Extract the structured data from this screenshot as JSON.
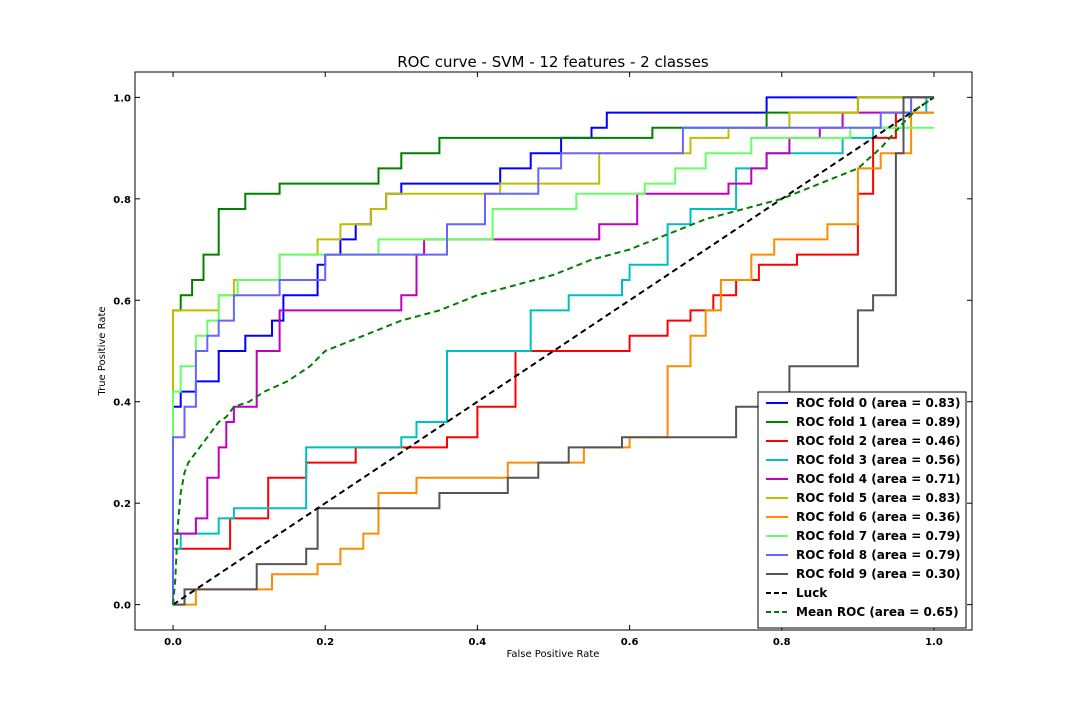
{
  "chart_data": {
    "type": "line",
    "title": "ROC curve - SVM - 12 features - 2 classes",
    "xlabel": "False Positive Rate",
    "ylabel": "True Positive Rate",
    "xlim": [
      -0.05,
      1.05
    ],
    "ylim": [
      -0.05,
      1.05
    ],
    "xticks": [
      "0.0",
      "0.2",
      "0.4",
      "0.6",
      "0.8",
      "1.0"
    ],
    "yticks": [
      "0.0",
      "0.2",
      "0.4",
      "0.6",
      "0.8",
      "1.0"
    ],
    "grid": false,
    "legend_position": "lower right",
    "series": [
      {
        "name": "ROC fold 0 (area = 0.83)",
        "color": "#0000ff",
        "dash": "solid",
        "x": [
          0,
          0,
          0.01,
          0.01,
          0.03,
          0.03,
          0.06,
          0.06,
          0.095,
          0.095,
          0.13,
          0.13,
          0.145,
          0.145,
          0.19,
          0.19,
          0.2,
          0.2,
          0.22,
          0.22,
          0.24,
          0.24,
          0.26,
          0.26,
          0.28,
          0.28,
          0.3,
          0.3,
          0.43,
          0.43,
          0.47,
          0.47,
          0.51,
          0.51,
          0.55,
          0.55,
          0.57,
          0.57,
          0.78,
          0.78,
          1.0
        ],
        "y": [
          0,
          0.39,
          0.39,
          0.42,
          0.42,
          0.44,
          0.44,
          0.5,
          0.5,
          0.53,
          0.53,
          0.56,
          0.56,
          0.61,
          0.61,
          0.67,
          0.67,
          0.69,
          0.69,
          0.72,
          0.72,
          0.75,
          0.75,
          0.78,
          0.78,
          0.81,
          0.81,
          0.83,
          0.83,
          0.86,
          0.86,
          0.89,
          0.89,
          0.92,
          0.92,
          0.94,
          0.94,
          0.97,
          0.97,
          1.0,
          1.0
        ]
      },
      {
        "name": "ROC fold 1 (area = 0.89)",
        "color": "#008000",
        "dash": "solid",
        "x": [
          0,
          0,
          0.01,
          0.01,
          0.025,
          0.025,
          0.04,
          0.04,
          0.06,
          0.06,
          0.095,
          0.095,
          0.14,
          0.14,
          0.27,
          0.27,
          0.3,
          0.3,
          0.35,
          0.35,
          0.63,
          0.63,
          0.78,
          0.78,
          0.9,
          0.9,
          1.0
        ],
        "y": [
          0,
          0.58,
          0.58,
          0.61,
          0.61,
          0.64,
          0.64,
          0.69,
          0.69,
          0.78,
          0.78,
          0.81,
          0.81,
          0.83,
          0.83,
          0.86,
          0.86,
          0.89,
          0.89,
          0.92,
          0.92,
          0.94,
          0.94,
          0.97,
          0.97,
          1.0,
          1.0
        ]
      },
      {
        "name": "ROC fold 2 (area = 0.46)",
        "color": "#ff0000",
        "dash": "solid",
        "x": [
          0,
          0,
          0.015,
          0.015,
          0.075,
          0.075,
          0.125,
          0.125,
          0.175,
          0.175,
          0.24,
          0.24,
          0.36,
          0.36,
          0.4,
          0.4,
          0.45,
          0.45,
          0.6,
          0.6,
          0.65,
          0.65,
          0.68,
          0.68,
          0.71,
          0.71,
          0.74,
          0.74,
          0.77,
          0.77,
          0.82,
          0.82,
          0.9,
          0.9,
          0.92,
          0.92,
          0.95,
          0.95,
          0.96,
          0.96,
          1.0
        ],
        "y": [
          0,
          0.11,
          0.11,
          0.11,
          0.11,
          0.17,
          0.17,
          0.25,
          0.25,
          0.28,
          0.28,
          0.31,
          0.31,
          0.33,
          0.33,
          0.39,
          0.39,
          0.5,
          0.5,
          0.53,
          0.53,
          0.56,
          0.56,
          0.58,
          0.58,
          0.61,
          0.61,
          0.64,
          0.64,
          0.67,
          0.67,
          0.69,
          0.69,
          0.81,
          0.81,
          0.92,
          0.92,
          0.97,
          0.97,
          1.0,
          1.0
        ]
      },
      {
        "name": "ROC fold 3 (area = 0.56)",
        "color": "#00bfbf",
        "dash": "solid",
        "x": [
          0,
          0,
          0.01,
          0.01,
          0.06,
          0.06,
          0.08,
          0.08,
          0.175,
          0.175,
          0.3,
          0.3,
          0.32,
          0.32,
          0.36,
          0.36,
          0.47,
          0.47,
          0.52,
          0.52,
          0.59,
          0.59,
          0.6,
          0.6,
          0.65,
          0.65,
          0.68,
          0.68,
          0.74,
          0.74,
          0.78,
          0.78,
          0.88,
          0.88,
          0.92,
          0.92,
          0.96,
          0.96,
          0.99,
          0.99,
          1.0
        ],
        "y": [
          0,
          0.11,
          0.11,
          0.14,
          0.14,
          0.17,
          0.17,
          0.19,
          0.19,
          0.31,
          0.31,
          0.33,
          0.33,
          0.36,
          0.36,
          0.5,
          0.5,
          0.58,
          0.58,
          0.61,
          0.61,
          0.64,
          0.64,
          0.67,
          0.67,
          0.75,
          0.75,
          0.78,
          0.78,
          0.86,
          0.86,
          0.89,
          0.89,
          0.92,
          0.92,
          0.94,
          0.94,
          0.97,
          0.97,
          1.0,
          1.0
        ]
      },
      {
        "name": "ROC fold 4 (area = 0.71)",
        "color": "#bf00bf",
        "dash": "solid",
        "x": [
          0,
          0,
          0.015,
          0.015,
          0.03,
          0.03,
          0.045,
          0.045,
          0.06,
          0.06,
          0.07,
          0.07,
          0.08,
          0.08,
          0.11,
          0.11,
          0.14,
          0.14,
          0.3,
          0.3,
          0.32,
          0.32,
          0.33,
          0.33,
          0.56,
          0.56,
          0.61,
          0.61,
          0.65,
          0.65,
          0.73,
          0.73,
          0.76,
          0.76,
          0.78,
          0.78,
          0.81,
          0.81,
          0.85,
          0.85,
          0.88,
          0.88,
          1.0
        ],
        "y": [
          0,
          0.14,
          0.14,
          0.14,
          0.14,
          0.17,
          0.17,
          0.25,
          0.25,
          0.31,
          0.31,
          0.36,
          0.36,
          0.39,
          0.39,
          0.5,
          0.5,
          0.58,
          0.58,
          0.61,
          0.61,
          0.69,
          0.69,
          0.72,
          0.72,
          0.75,
          0.75,
          0.81,
          0.81,
          0.81,
          0.81,
          0.83,
          0.83,
          0.86,
          0.86,
          0.89,
          0.89,
          0.92,
          0.92,
          0.94,
          0.94,
          0.97,
          0.97
        ]
      },
      {
        "name": "ROC fold 5 (area = 0.83)",
        "color": "#bfbf00",
        "dash": "solid",
        "x": [
          0,
          0,
          0.03,
          0.03,
          0.06,
          0.06,
          0.08,
          0.08,
          0.14,
          0.14,
          0.19,
          0.19,
          0.22,
          0.22,
          0.26,
          0.26,
          0.28,
          0.28,
          0.43,
          0.43,
          0.56,
          0.56,
          0.68,
          0.68,
          0.73,
          0.73,
          0.81,
          0.81,
          0.9,
          0.9,
          0.97,
          0.97,
          1.0
        ],
        "y": [
          0,
          0.58,
          0.58,
          0.58,
          0.58,
          0.61,
          0.61,
          0.64,
          0.64,
          0.69,
          0.69,
          0.72,
          0.72,
          0.75,
          0.75,
          0.78,
          0.78,
          0.81,
          0.81,
          0.83,
          0.83,
          0.89,
          0.89,
          0.92,
          0.92,
          0.94,
          0.94,
          0.97,
          0.97,
          1.0,
          1.0,
          0.97,
          0.97
        ]
      },
      {
        "name": "ROC fold 6 (area = 0.36)",
        "color": "#ff8c00",
        "dash": "solid",
        "x": [
          0,
          0,
          0.03,
          0.03,
          0.13,
          0.13,
          0.19,
          0.19,
          0.22,
          0.22,
          0.25,
          0.25,
          0.27,
          0.27,
          0.32,
          0.32,
          0.44,
          0.44,
          0.54,
          0.54,
          0.6,
          0.6,
          0.65,
          0.65,
          0.68,
          0.68,
          0.7,
          0.7,
          0.72,
          0.72,
          0.76,
          0.76,
          0.79,
          0.79,
          0.86,
          0.86,
          0.9,
          0.9,
          0.93,
          0.93,
          0.97,
          0.97,
          1.0
        ],
        "y": [
          0,
          0,
          0,
          0.03,
          0.03,
          0.06,
          0.06,
          0.08,
          0.08,
          0.11,
          0.11,
          0.14,
          0.14,
          0.22,
          0.22,
          0.25,
          0.25,
          0.28,
          0.28,
          0.31,
          0.31,
          0.33,
          0.33,
          0.47,
          0.47,
          0.53,
          0.53,
          0.58,
          0.58,
          0.64,
          0.64,
          0.69,
          0.69,
          0.72,
          0.72,
          0.75,
          0.75,
          0.86,
          0.86,
          0.89,
          0.89,
          0.97,
          0.97
        ]
      },
      {
        "name": "ROC fold 7 (area = 0.79)",
        "color": "#66ff66",
        "dash": "solid",
        "x": [
          0,
          0,
          0.01,
          0.01,
          0.03,
          0.03,
          0.045,
          0.045,
          0.06,
          0.06,
          0.085,
          0.085,
          0.14,
          0.14,
          0.19,
          0.19,
          0.27,
          0.27,
          0.42,
          0.42,
          0.53,
          0.53,
          0.62,
          0.62,
          0.66,
          0.66,
          0.7,
          0.7,
          0.76,
          0.76,
          0.89,
          0.89,
          0.96,
          0.96,
          1.0
        ],
        "y": [
          0,
          0.42,
          0.42,
          0.47,
          0.47,
          0.53,
          0.53,
          0.56,
          0.56,
          0.61,
          0.61,
          0.64,
          0.64,
          0.69,
          0.69,
          0.69,
          0.69,
          0.72,
          0.72,
          0.78,
          0.78,
          0.81,
          0.81,
          0.83,
          0.83,
          0.86,
          0.86,
          0.89,
          0.89,
          0.92,
          0.92,
          0.94,
          0.94,
          0.94,
          0.94
        ]
      },
      {
        "name": "ROC fold 8 (area = 0.79)",
        "color": "#6666ff",
        "dash": "solid",
        "x": [
          0,
          0,
          0.015,
          0.015,
          0.03,
          0.03,
          0.045,
          0.045,
          0.06,
          0.06,
          0.08,
          0.08,
          0.14,
          0.14,
          0.2,
          0.2,
          0.36,
          0.36,
          0.41,
          0.41,
          0.48,
          0.48,
          0.51,
          0.51,
          0.67,
          0.67,
          0.93,
          0.93,
          0.97,
          0.97,
          1.0
        ],
        "y": [
          0,
          0.33,
          0.33,
          0.39,
          0.39,
          0.5,
          0.5,
          0.53,
          0.53,
          0.56,
          0.56,
          0.61,
          0.61,
          0.64,
          0.64,
          0.69,
          0.69,
          0.75,
          0.75,
          0.81,
          0.81,
          0.86,
          0.86,
          0.89,
          0.89,
          0.94,
          0.94,
          0.97,
          0.97,
          1.0,
          1.0
        ]
      },
      {
        "name": "ROC fold 9 (area = 0.30)",
        "color": "#555555",
        "dash": "solid",
        "x": [
          0,
          0,
          0.015,
          0.015,
          0.11,
          0.11,
          0.175,
          0.175,
          0.19,
          0.19,
          0.26,
          0.26,
          0.35,
          0.35,
          0.44,
          0.44,
          0.48,
          0.48,
          0.52,
          0.52,
          0.59,
          0.59,
          0.74,
          0.74,
          0.81,
          0.81,
          0.9,
          0.9,
          0.92,
          0.92,
          0.95,
          0.95,
          0.96,
          0.96,
          1.0
        ],
        "y": [
          0,
          0,
          0,
          0.03,
          0.03,
          0.08,
          0.08,
          0.11,
          0.11,
          0.19,
          0.19,
          0.19,
          0.19,
          0.22,
          0.22,
          0.25,
          0.25,
          0.28,
          0.28,
          0.31,
          0.31,
          0.33,
          0.33,
          0.39,
          0.39,
          0.47,
          0.47,
          0.58,
          0.58,
          0.61,
          0.61,
          0.89,
          0.89,
          1.0,
          1.0
        ]
      },
      {
        "name": "Luck",
        "color": "#000000",
        "dash": "dashed",
        "x": [
          0,
          1
        ],
        "y": [
          0,
          1
        ]
      },
      {
        "name": "Mean ROC (area = 0.65)",
        "color": "#008000",
        "dash": "dashed",
        "x": [
          0,
          0.003,
          0.006,
          0.01,
          0.015,
          0.02,
          0.03,
          0.04,
          0.05,
          0.06,
          0.07,
          0.08,
          0.1,
          0.12,
          0.15,
          0.18,
          0.2,
          0.25,
          0.3,
          0.35,
          0.4,
          0.45,
          0.5,
          0.55,
          0.6,
          0.65,
          0.7,
          0.75,
          0.8,
          0.85,
          0.9,
          0.93,
          0.96,
          0.98,
          1.0
        ],
        "y": [
          0,
          0.05,
          0.15,
          0.22,
          0.26,
          0.28,
          0.3,
          0.32,
          0.34,
          0.36,
          0.37,
          0.39,
          0.4,
          0.42,
          0.44,
          0.47,
          0.5,
          0.53,
          0.56,
          0.58,
          0.61,
          0.63,
          0.65,
          0.68,
          0.7,
          0.73,
          0.76,
          0.78,
          0.8,
          0.83,
          0.86,
          0.9,
          0.95,
          0.98,
          1.0
        ]
      }
    ]
  }
}
